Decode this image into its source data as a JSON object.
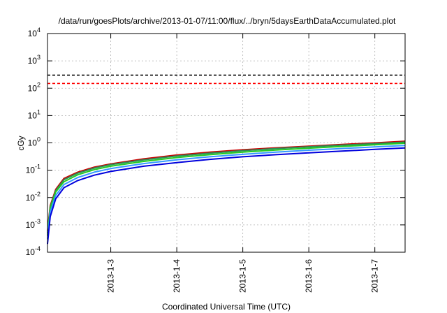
{
  "chart_data": {
    "type": "line",
    "title": "/data/run/goesPlots/archive/2013-01-07/11:00/flux/../bryn/5daysEarthDataAccumulated.plot",
    "xlabel": "Coordinated Universal Time (UTC)",
    "ylabel": "cGy",
    "y_scale": "log",
    "ylim": [
      0.0001,
      10000
    ],
    "xlim": [
      "2013-01-02 01:00",
      "2013-01-07 11:00"
    ],
    "grid": true,
    "x_ticks": [
      "2013-1-3",
      "2013-1-4",
      "2013-1-5",
      "2013-1-6",
      "2013-1-7"
    ],
    "y_ticks": [
      {
        "base": "10",
        "exp": "-4"
      },
      {
        "base": "10",
        "exp": "-3"
      },
      {
        "base": "10",
        "exp": "-2"
      },
      {
        "base": "10",
        "exp": "-1"
      },
      {
        "base": "10",
        "exp": "0"
      },
      {
        "base": "10",
        "exp": "1"
      },
      {
        "base": "10",
        "exp": "2"
      },
      {
        "base": "10",
        "exp": "3"
      },
      {
        "base": "10",
        "exp": "4"
      }
    ],
    "x": [
      "2013-01-02 01:00",
      "2013-01-02 02:00",
      "2013-01-02 04:00",
      "2013-01-02 07:00",
      "2013-01-02 12:00",
      "2013-01-02 18:00",
      "2013-01-03 00:00",
      "2013-01-03 12:00",
      "2013-01-04 00:00",
      "2013-01-04 12:00",
      "2013-01-05 00:00",
      "2013-01-05 12:00",
      "2013-01-06 00:00",
      "2013-01-06 12:00",
      "2013-01-07 00:00",
      "2013-01-07 11:00"
    ],
    "series": [
      {
        "color": "#cc0000",
        "dashed": false,
        "values": [
          0.0006,
          0.005,
          0.02,
          0.05,
          0.085,
          0.13,
          0.17,
          0.26,
          0.36,
          0.46,
          0.56,
          0.66,
          0.76,
          0.88,
          1.0,
          1.15
        ]
      },
      {
        "color": "#2e8b57",
        "dashed": false,
        "values": [
          0.0005,
          0.0045,
          0.018,
          0.045,
          0.078,
          0.12,
          0.16,
          0.24,
          0.33,
          0.42,
          0.52,
          0.62,
          0.72,
          0.83,
          0.94,
          1.07
        ]
      },
      {
        "color": "#22cc22",
        "dashed": false,
        "values": [
          0.0004,
          0.004,
          0.016,
          0.038,
          0.068,
          0.105,
          0.14,
          0.21,
          0.29,
          0.37,
          0.46,
          0.55,
          0.64,
          0.74,
          0.85,
          0.97
        ]
      },
      {
        "color": "#3399ff",
        "dashed": false,
        "values": [
          0.0003,
          0.003,
          0.012,
          0.03,
          0.054,
          0.085,
          0.115,
          0.175,
          0.24,
          0.31,
          0.38,
          0.46,
          0.54,
          0.62,
          0.71,
          0.8
        ]
      },
      {
        "color": "#0000dd",
        "dashed": false,
        "values": [
          0.0002,
          0.002,
          0.009,
          0.023,
          0.042,
          0.066,
          0.09,
          0.14,
          0.19,
          0.25,
          0.31,
          0.37,
          0.43,
          0.5,
          0.58,
          0.65
        ]
      },
      {
        "color": "#000000",
        "dashed": true,
        "values": [
          300,
          300,
          300,
          300,
          300,
          300,
          300,
          300,
          300,
          300,
          300,
          300,
          300,
          300,
          300,
          300
        ]
      },
      {
        "color": "#ff0000",
        "dashed": true,
        "values": [
          150,
          150,
          150,
          150,
          150,
          150,
          150,
          150,
          150,
          150,
          150,
          150,
          150,
          150,
          150,
          150
        ]
      }
    ]
  }
}
